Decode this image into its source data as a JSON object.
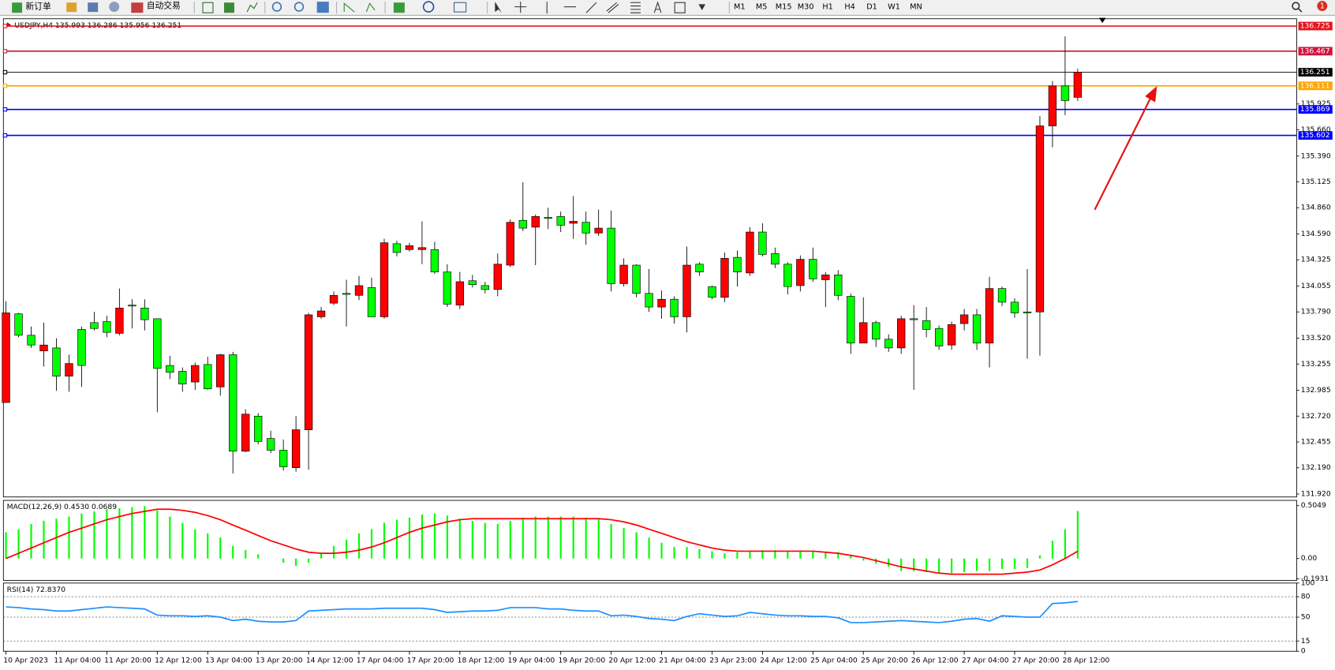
{
  "toolbar": {
    "new_order": "新订单",
    "auto_trading": "自动交易",
    "timeframes": [
      "M1",
      "M5",
      "M15",
      "M30",
      "H1",
      "H4",
      "D1",
      "W1",
      "MN"
    ],
    "notifications": "1"
  },
  "chart_data": [
    {
      "type": "candlestick",
      "title": "USDJPY,H4  135.993 136.286 135.956 136.251",
      "up_color": "#ff0000",
      "down_color": "#00ff00",
      "categories": [
        "10 Apr 2023",
        null,
        null,
        null,
        "11 Apr 04:00",
        null,
        null,
        null,
        "11 Apr 20:00",
        null,
        null,
        null,
        "12 Apr 12:00",
        null,
        null,
        null,
        "13 Apr 04:00",
        null,
        null,
        null,
        "13 Apr 20:00",
        null,
        null,
        null,
        "14 Apr 12:00",
        null,
        null,
        null,
        "17 Apr 04:00",
        null,
        null,
        null,
        "17 Apr 20:00",
        null,
        null,
        null,
        "18 Apr 12:00",
        null,
        null,
        null,
        "19 Apr 04:00",
        null,
        null,
        null,
        "19 Apr 20:00",
        null,
        null,
        null,
        "20 Apr 12:00",
        null,
        null,
        null,
        "21 Apr 04:00",
        null,
        null,
        null,
        "23 Apr 23:00",
        null,
        null,
        null,
        "24 Apr 12:00",
        null,
        null,
        null,
        "25 Apr 04:00",
        null,
        null,
        null,
        "25 Apr 20:00",
        null,
        null,
        null,
        "26 Apr 12:00",
        null,
        null,
        null,
        "27 Apr 04:00",
        null,
        null,
        null,
        "27 Apr 20:00",
        null,
        null,
        null,
        "28 Apr 12:00",
        null
      ],
      "open": [
        132.86,
        133.77,
        133.55,
        133.39,
        133.42,
        133.13,
        133.61,
        133.68,
        133.69,
        133.57,
        133.86,
        133.83,
        133.72,
        133.24,
        133.18,
        133.07,
        133.25,
        133.02,
        133.35,
        132.36,
        132.72,
        132.49,
        132.37,
        132.19,
        132.58,
        133.74,
        133.88,
        133.98,
        133.96,
        134.04,
        133.74,
        134.49,
        134.43,
        134.43,
        134.43,
        134.2,
        133.86,
        134.11,
        134.06,
        134.02,
        134.27,
        134.73,
        134.66,
        134.76,
        134.77,
        134.7,
        134.71,
        134.6,
        134.65,
        134.08,
        134.27,
        133.98,
        133.84,
        133.92,
        133.74,
        134.28,
        134.05,
        133.94,
        134.35,
        134.19,
        134.61,
        134.39,
        134.28,
        134.06,
        134.33,
        134.12,
        134.17,
        133.95,
        133.47,
        133.68,
        133.51,
        133.42,
        133.72,
        133.7,
        133.62,
        133.45,
        133.67,
        133.76,
        133.47,
        134.03,
        133.89,
        133.79,
        133.79,
        135.7,
        136.11,
        135.993
      ],
      "high": [
        133.9,
        133.78,
        133.64,
        133.68,
        133.52,
        133.35,
        133.64,
        133.79,
        133.75,
        134.03,
        133.92,
        133.92,
        133.72,
        133.34,
        133.22,
        133.27,
        133.33,
        133.36,
        133.38,
        132.79,
        132.75,
        132.57,
        132.48,
        132.72,
        133.78,
        133.84,
        134.0,
        134.12,
        134.16,
        134.14,
        134.54,
        134.52,
        134.5,
        134.72,
        134.51,
        134.28,
        134.2,
        134.17,
        134.1,
        134.39,
        134.74,
        135.12,
        134.79,
        134.86,
        134.82,
        134.98,
        134.82,
        134.84,
        134.83,
        134.34,
        134.28,
        134.23,
        134.01,
        133.95,
        134.46,
        134.3,
        134.06,
        134.4,
        134.42,
        134.66,
        134.7,
        134.45,
        134.3,
        134.37,
        134.45,
        134.2,
        134.22,
        133.98,
        133.94,
        133.7,
        133.56,
        133.75,
        133.86,
        133.84,
        133.65,
        133.69,
        133.82,
        133.82,
        134.15,
        134.05,
        133.93,
        134.23,
        135.8,
        136.16,
        136.62,
        136.286
      ],
      "low": [
        132.86,
        133.53,
        133.42,
        133.23,
        132.98,
        132.97,
        133.02,
        133.6,
        133.53,
        133.55,
        133.62,
        133.6,
        132.76,
        133.1,
        132.97,
        132.99,
        132.99,
        132.93,
        132.13,
        132.35,
        132.43,
        132.34,
        132.16,
        132.15,
        132.17,
        133.72,
        133.86,
        133.64,
        133.91,
        133.74,
        133.72,
        134.36,
        134.41,
        134.28,
        134.18,
        133.84,
        133.82,
        134.04,
        133.98,
        133.95,
        134.25,
        134.62,
        134.27,
        134.64,
        134.61,
        134.54,
        134.48,
        134.57,
        134.0,
        134.05,
        133.94,
        133.79,
        133.72,
        133.67,
        133.58,
        134.16,
        133.92,
        133.89,
        134.05,
        134.16,
        134.36,
        134.24,
        133.97,
        134.0,
        134.1,
        133.84,
        133.91,
        133.36,
        133.47,
        133.43,
        133.38,
        133.36,
        132.99,
        133.53,
        133.4,
        133.4,
        133.6,
        133.4,
        133.22,
        133.85,
        133.73,
        133.31,
        133.34,
        135.48,
        135.81,
        135.956
      ],
      "close": [
        133.78,
        133.55,
        133.45,
        133.45,
        133.13,
        133.26,
        133.24,
        133.62,
        133.58,
        133.83,
        133.85,
        133.71,
        133.21,
        133.17,
        133.05,
        133.24,
        133.0,
        133.35,
        132.36,
        132.74,
        132.46,
        132.37,
        132.2,
        132.58,
        133.76,
        133.8,
        133.96,
        133.97,
        134.06,
        133.74,
        134.5,
        134.4,
        134.47,
        134.45,
        134.2,
        133.87,
        134.1,
        134.07,
        134.02,
        134.28,
        134.71,
        134.65,
        134.77,
        134.75,
        134.68,
        134.72,
        134.6,
        134.65,
        134.08,
        134.27,
        133.98,
        133.84,
        133.92,
        133.74,
        134.27,
        134.2,
        133.94,
        134.34,
        134.2,
        134.61,
        134.38,
        134.28,
        134.05,
        134.33,
        134.13,
        134.17,
        133.96,
        133.47,
        133.68,
        133.51,
        133.42,
        133.72,
        133.71,
        133.61,
        133.44,
        133.66,
        133.76,
        133.47,
        134.03,
        133.89,
        133.78,
        133.78,
        135.7,
        136.11,
        135.96,
        136.251
      ],
      "ylim": [
        131.89,
        136.8
      ],
      "yticks": [
        135.925,
        {
          "value": 135.66,
          "label": "135.660"
        },
        {
          "value": 135.39,
          "label": "135.390"
        },
        135.125,
        {
          "value": 134.86,
          "label": "134.860"
        },
        {
          "value": 134.59,
          "label": "134.590"
        },
        134.325,
        134.055,
        {
          "value": 133.79,
          "label": "133.790"
        },
        {
          "value": 133.52,
          "label": "133.520"
        },
        133.255,
        132.985,
        {
          "value": 132.72,
          "label": "132.720"
        },
        132.455,
        {
          "value": 132.19,
          "label": "132.190"
        },
        {
          "value": 131.92,
          "label": "131.920"
        }
      ],
      "hlines": [
        {
          "value": 136.725,
          "color": "#e8141e"
        },
        {
          "value": 136.467,
          "color": "#d2143c"
        },
        {
          "value": 136.251,
          "color": "#000000"
        },
        {
          "value": 136.111,
          "color": "#ffa500"
        },
        {
          "value": 135.869,
          "color": "#0000ff"
        },
        {
          "value": 135.602,
          "color": "#0000ff"
        }
      ]
    },
    {
      "type": "indicator",
      "title": "MACD(12,26,9) 0.4530 0.0689",
      "ylim": [
        -0.21,
        0.555
      ],
      "yticks": [
        0.5049,
        {
          "value": 0,
          "label": "0.00"
        },
        -0.1931
      ],
      "series": [
        {
          "style": "histogram",
          "color": "#00ff00",
          "values": [
            0.25,
            0.28,
            0.33,
            0.36,
            0.38,
            0.4,
            0.43,
            0.45,
            0.47,
            0.48,
            0.49,
            0.5,
            0.46,
            0.4,
            0.34,
            0.28,
            0.24,
            0.2,
            0.12,
            0.08,
            0.04,
            0.0,
            -0.04,
            -0.07,
            -0.04,
            0.05,
            0.12,
            0.18,
            0.24,
            0.28,
            0.34,
            0.37,
            0.39,
            0.42,
            0.43,
            0.41,
            0.38,
            0.36,
            0.34,
            0.33,
            0.36,
            0.39,
            0.4,
            0.4,
            0.4,
            0.4,
            0.39,
            0.38,
            0.33,
            0.29,
            0.25,
            0.2,
            0.15,
            0.11,
            0.11,
            0.09,
            0.07,
            0.05,
            0.06,
            0.07,
            0.08,
            0.08,
            0.07,
            0.07,
            0.07,
            0.06,
            0.06,
            0.03,
            -0.02,
            -0.05,
            -0.08,
            -0.12,
            -0.12,
            -0.13,
            -0.14,
            -0.14,
            -0.13,
            -0.12,
            -0.12,
            -0.1,
            -0.1,
            -0.09,
            0.03,
            0.17,
            0.28,
            0.453
          ]
        },
        {
          "style": "line",
          "color": "#ff0000",
          "values": [
            0.0,
            0.05,
            0.1,
            0.15,
            0.2,
            0.25,
            0.29,
            0.33,
            0.37,
            0.4,
            0.43,
            0.45,
            0.47,
            0.47,
            0.46,
            0.44,
            0.41,
            0.37,
            0.32,
            0.27,
            0.22,
            0.17,
            0.13,
            0.09,
            0.06,
            0.05,
            0.05,
            0.06,
            0.08,
            0.11,
            0.15,
            0.2,
            0.25,
            0.29,
            0.32,
            0.35,
            0.37,
            0.38,
            0.38,
            0.38,
            0.38,
            0.38,
            0.38,
            0.38,
            0.38,
            0.38,
            0.38,
            0.38,
            0.37,
            0.35,
            0.32,
            0.28,
            0.24,
            0.2,
            0.16,
            0.13,
            0.1,
            0.08,
            0.07,
            0.07,
            0.07,
            0.07,
            0.07,
            0.07,
            0.07,
            0.06,
            0.05,
            0.03,
            0.01,
            -0.02,
            -0.05,
            -0.08,
            -0.1,
            -0.12,
            -0.14,
            -0.15,
            -0.15,
            -0.15,
            -0.15,
            -0.15,
            -0.14,
            -0.13,
            -0.11,
            -0.06,
            0.0,
            0.0689
          ]
        }
      ]
    },
    {
      "type": "indicator",
      "title": "RSI(14) 72.8370",
      "ylim": [
        0,
        100
      ],
      "yticks": [
        100,
        80,
        50,
        15,
        0
      ],
      "levels": [
        80,
        50,
        15
      ],
      "series": [
        {
          "style": "line",
          "color": "#1e90ff",
          "values": [
            65,
            64,
            62,
            61,
            59,
            59,
            61,
            63,
            65,
            64,
            63,
            62,
            53,
            52,
            52,
            51,
            52,
            50,
            45,
            47,
            44,
            43,
            43,
            45,
            59,
            60,
            61,
            62,
            62,
            62,
            63,
            63,
            63,
            63,
            61,
            57,
            58,
            59,
            59,
            60,
            64,
            64,
            64,
            62,
            62,
            60,
            59,
            59,
            52,
            53,
            51,
            48,
            47,
            45,
            51,
            55,
            53,
            51,
            52,
            57,
            55,
            53,
            52,
            52,
            51,
            51,
            49,
            42,
            42,
            43,
            44,
            45,
            44,
            43,
            42,
            44,
            47,
            48,
            44,
            52,
            51,
            50,
            50,
            70,
            71,
            72.837
          ]
        }
      ]
    }
  ]
}
